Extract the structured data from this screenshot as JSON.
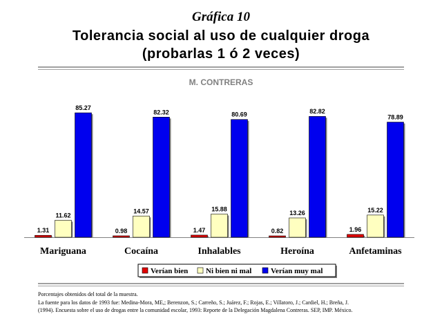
{
  "header": {
    "kicker": "Gráfica 10",
    "title_line1": "Tolerancia social al uso de cualquier droga",
    "title_line2": "(probarlas 1 ó 2 veces)"
  },
  "chart_data": {
    "type": "bar",
    "subtitle": "M. CONTRERAS",
    "categories": [
      "Mariguana",
      "Cocaína",
      "Inhalables",
      "Heroína",
      "Anfetaminas"
    ],
    "series": [
      {
        "name": "Verían bien",
        "color": "#e00000",
        "values": [
          1.31,
          0.98,
          1.47,
          0.82,
          1.96
        ]
      },
      {
        "name": "Ni bien ni mal",
        "color": "#ffffc0",
        "values": [
          11.62,
          14.57,
          15.88,
          13.26,
          15.22
        ]
      },
      {
        "name": "Verían muy mal",
        "color": "#0000ee",
        "values": [
          85.27,
          82.32,
          80.69,
          82.82,
          78.89
        ]
      }
    ],
    "ylim": [
      0,
      100
    ],
    "legend_position": "bottom",
    "grid": false
  },
  "footer": {
    "line1": "Porcentajes obtenidos del total de la muestra.",
    "line2": "La fuente para los datos de 1993 fue: Medina-Mora, ME,; Berenzon, S.; Carreño, S.; Juárez, F.; Rojas, E.; Villatoro, J.; Cardiel, H.; Breña, J.",
    "line3": "(1994). Encuesta sobre el uso de drogas entre la comunidad escolar, 1993: Reporte de la Delegación Magdalena Contreras. SEP, IMP. México."
  }
}
